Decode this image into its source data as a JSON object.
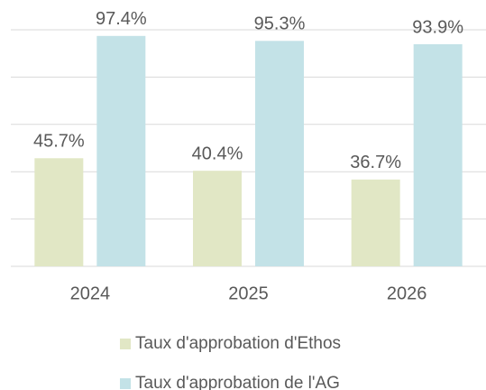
{
  "chart_data": {
    "type": "bar",
    "categories": [
      "2024",
      "2025",
      "2026"
    ],
    "series": [
      {
        "name": "Taux d'approbation d'Ethos",
        "color": "#e1e7c5",
        "values": [
          45.7,
          40.4,
          36.7
        ],
        "value_labels": [
          "45.7%",
          "40.4%",
          "36.7%"
        ]
      },
      {
        "name": "Taux d'approbation de l'AG",
        "color": "#c3e2e7",
        "values": [
          97.4,
          95.3,
          93.9
        ],
        "value_labels": [
          "97.4%",
          "95.3%",
          "93.9%"
        ]
      }
    ],
    "ylim": [
      0,
      100
    ],
    "yticks": [
      0,
      20,
      40,
      60,
      80,
      100
    ],
    "grid": true,
    "legend": "bottom"
  }
}
